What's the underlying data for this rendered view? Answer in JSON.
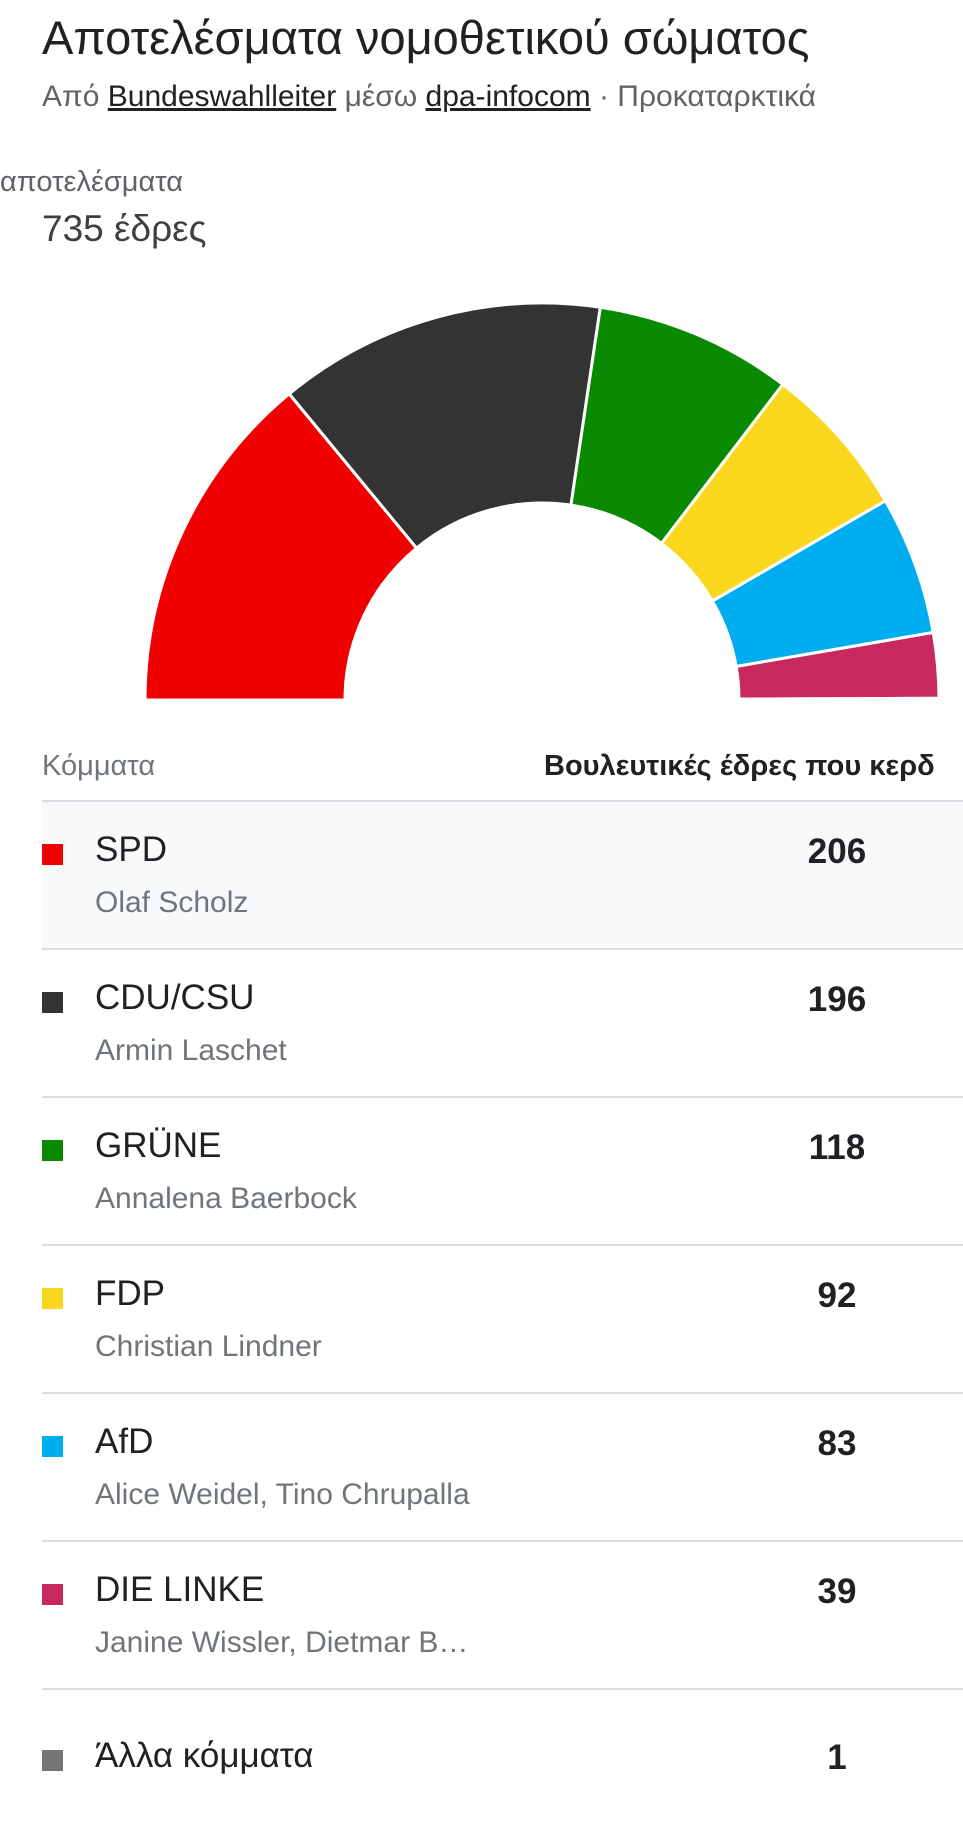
{
  "header": {
    "title": "Αποτελέσματα νομοθετικού σώματος",
    "source_prefix": "Από",
    "source_name": "Bundeswahlleiter",
    "source_via": "μέσω",
    "source_provider": "dpa-infocom",
    "source_suffix": "· Προκαταρκτικά"
  },
  "summary": {
    "results_label": "αποτελέσματα",
    "seats_total": "735 έδρες"
  },
  "table": {
    "col_parties": "Κόμματα",
    "col_seats": "Βουλευτικές έδρες που κερδ"
  },
  "parties": [
    {
      "name": "SPD",
      "leader": "Olaf Scholz",
      "seats": "206",
      "color": "#f00000",
      "selected": true
    },
    {
      "name": "CDU/CSU",
      "leader": "Armin Laschet",
      "seats": "196",
      "color": "#333333"
    },
    {
      "name": "GRÜNE",
      "leader": "Annalena Baerbock",
      "seats": "118",
      "color": "#0a8a00"
    },
    {
      "name": "FDP",
      "leader": "Christian Lindner",
      "seats": "92",
      "color": "#f9d71c"
    },
    {
      "name": "AfD",
      "leader": "Alice Weidel, Tino Chrupalla",
      "seats": "83",
      "color": "#00aeef"
    },
    {
      "name": "DIE LINKE",
      "leader": "Janine Wissler, Dietmar B…",
      "seats": "39",
      "color": "#c7285f"
    },
    {
      "name": "Άλλα κόμματα",
      "leader": "",
      "seats": "1",
      "color": "#757575"
    }
  ],
  "chart_data": {
    "type": "pie",
    "shape": "half-donut",
    "total": 735,
    "categories": [
      "SPD",
      "CDU/CSU",
      "GRÜNE",
      "FDP",
      "AfD",
      "DIE LINKE",
      "Άλλα κόμματα"
    ],
    "values": [
      206,
      196,
      118,
      92,
      83,
      39,
      1
    ],
    "colors": [
      "#f00000",
      "#333333",
      "#0a8a00",
      "#f9d71c",
      "#00aeef",
      "#c7285f",
      "#757575"
    ]
  }
}
